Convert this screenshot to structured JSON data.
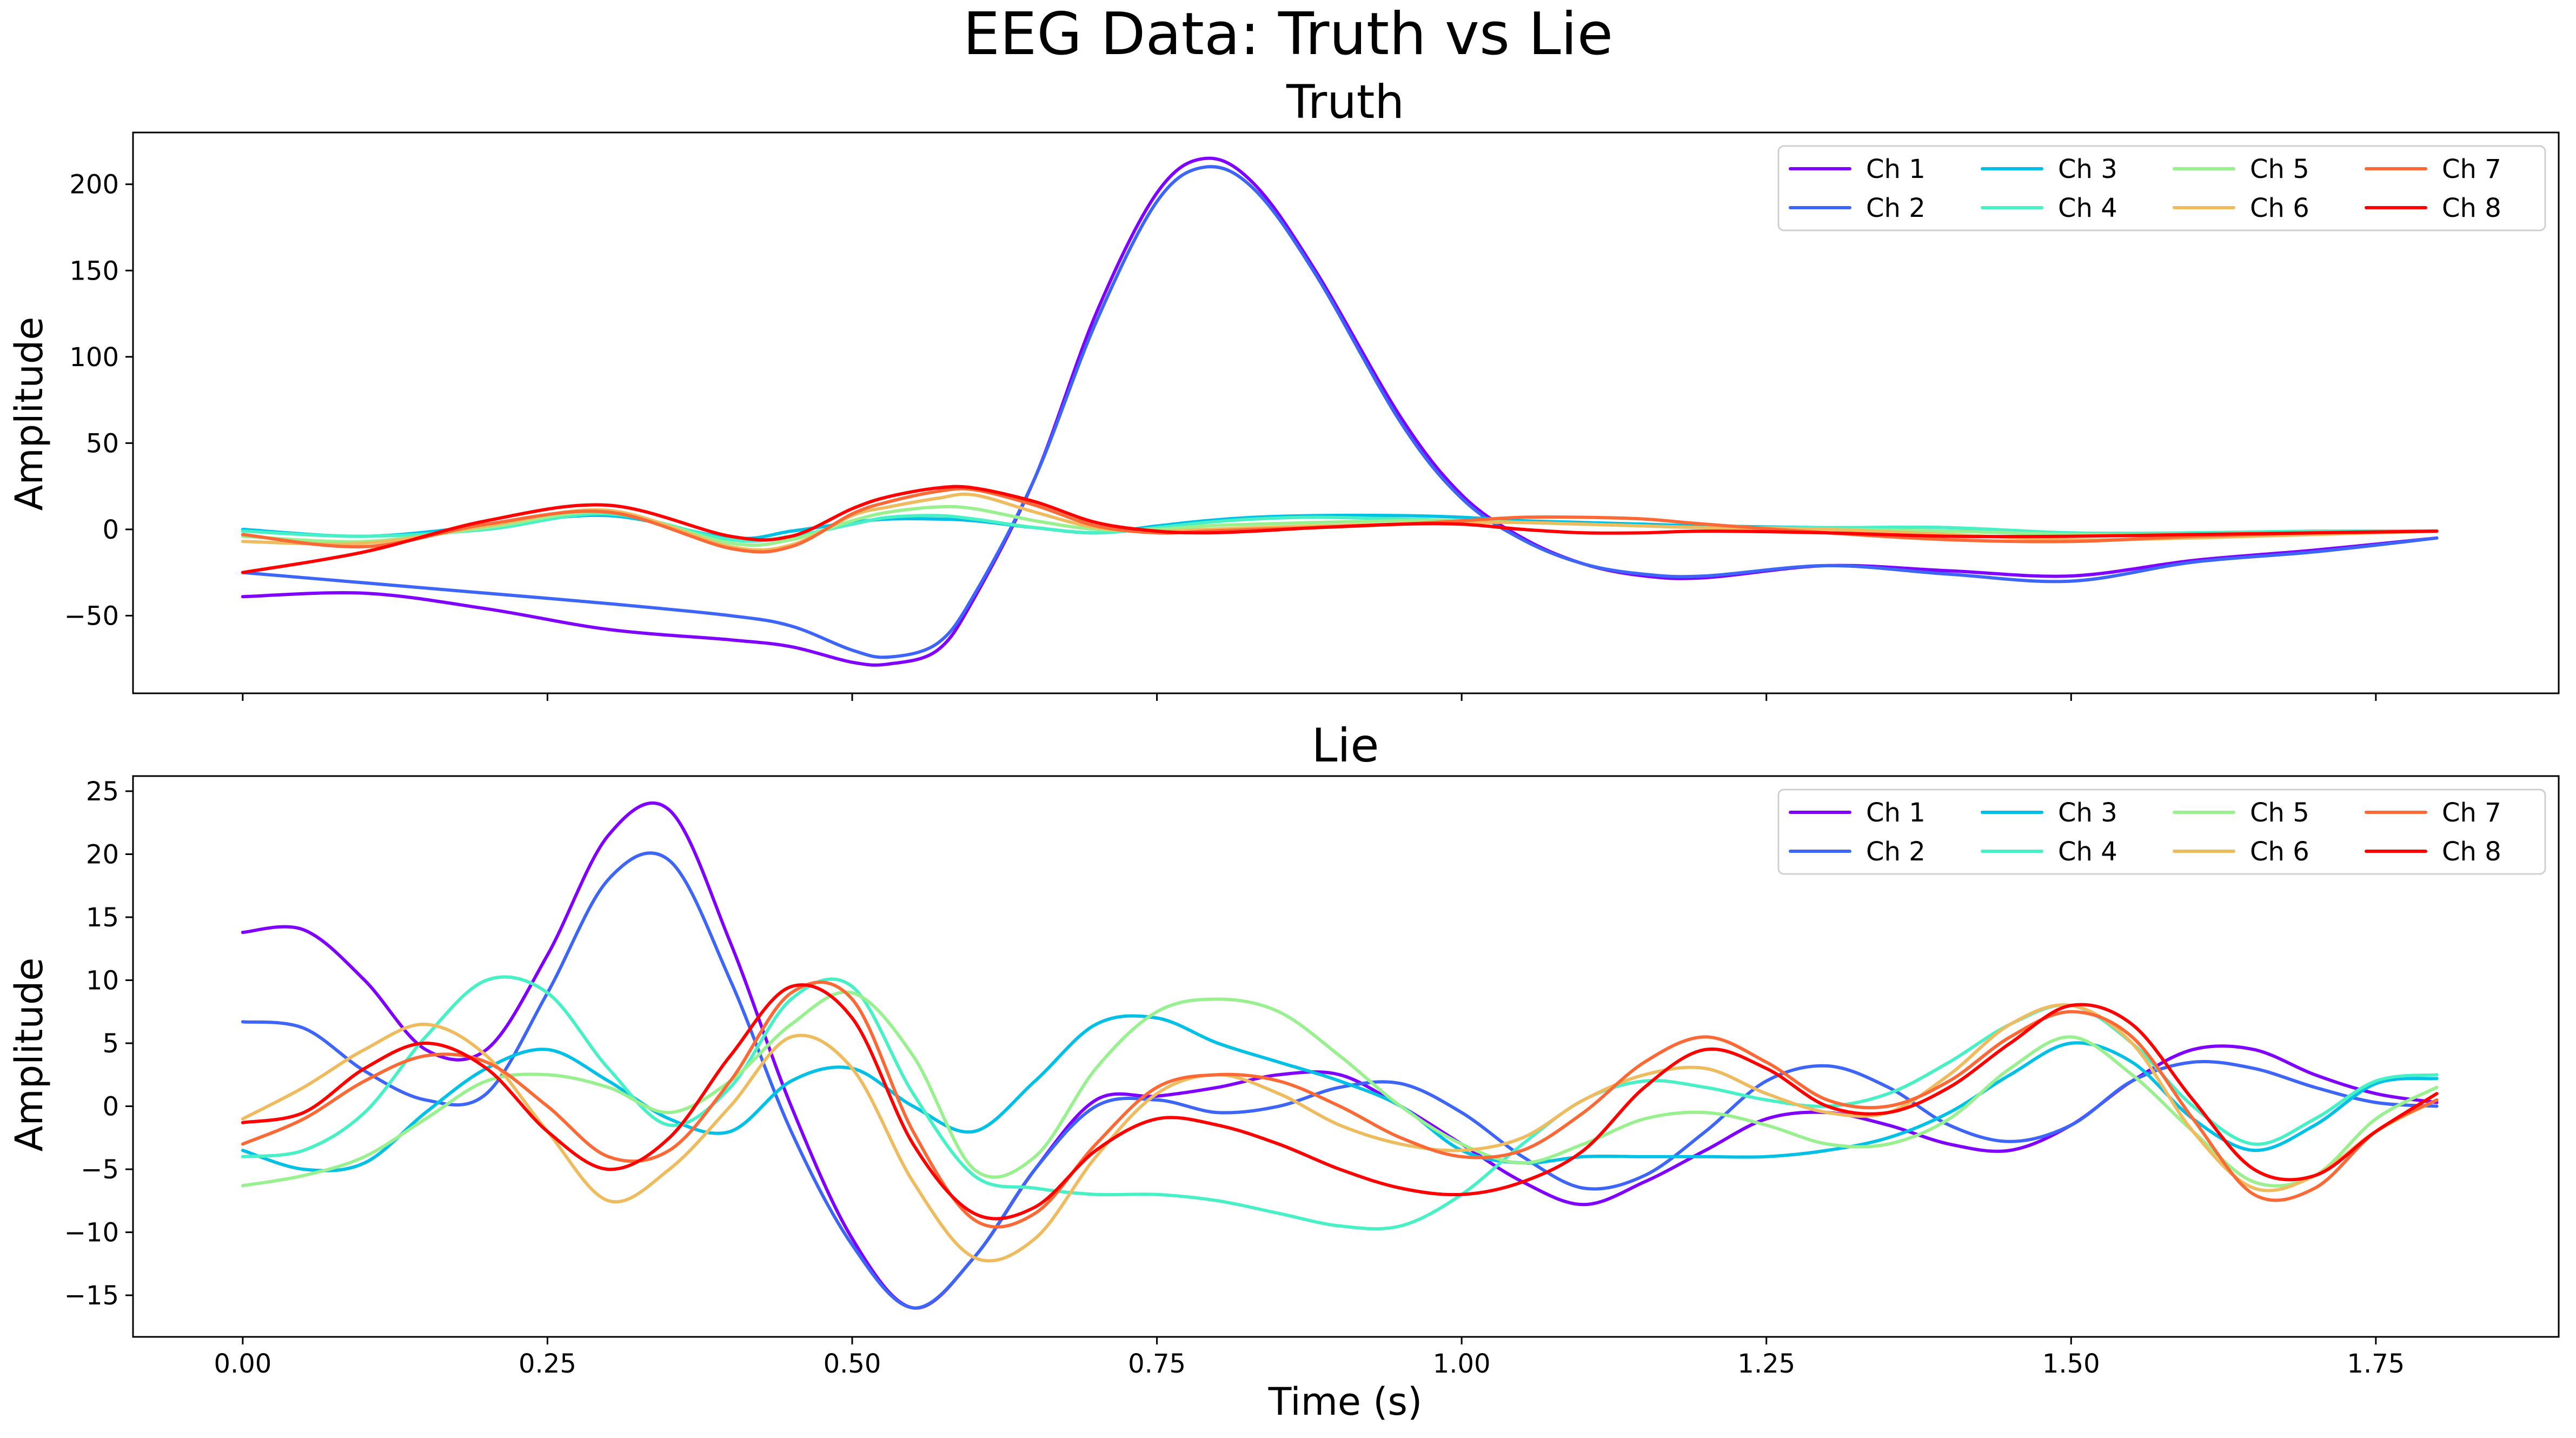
{
  "figure": {
    "title": "EEG Data: Truth vs Lie"
  },
  "colors": [
    "#8000ff",
    "#3d65f7",
    "#00c0e6",
    "#48f0c6",
    "#98f08e",
    "#eebc5f",
    "#fb6936",
    "#ff0000"
  ],
  "chart_data": [
    {
      "type": "line",
      "title": "Truth",
      "xlabel": "",
      "ylabel": "Amplitude",
      "xlim": [
        -0.09,
        1.9
      ],
      "ylim": [
        -95,
        230
      ],
      "xticks": [
        0.0,
        0.25,
        0.5,
        0.75,
        1.0,
        1.25,
        1.5,
        1.75
      ],
      "xtick_labels": [],
      "yticks": [
        -50,
        0,
        50,
        100,
        150,
        200
      ],
      "ytick_labels": [
        "−50",
        "0",
        "50",
        "100",
        "150",
        "200"
      ],
      "legend": {
        "placement": "upper right",
        "columns": 4
      },
      "grid": false,
      "x": [
        0.0,
        0.1,
        0.2,
        0.3,
        0.4,
        0.45,
        0.5,
        0.53,
        0.57,
        0.6,
        0.65,
        0.7,
        0.75,
        0.79,
        0.83,
        0.88,
        0.95,
        1.0,
        1.05,
        1.1,
        1.15,
        1.2,
        1.3,
        1.4,
        1.5,
        1.6,
        1.7,
        1.8
      ],
      "series": [
        {
          "name": "Ch 1",
          "values": [
            -39,
            -37,
            -46,
            -58,
            -64,
            -68,
            -77,
            -78,
            -70,
            -40,
            30,
            125,
            195,
            215,
            200,
            150,
            65,
            20,
            -5,
            -20,
            -27,
            -28,
            -21,
            -24,
            -27,
            -18,
            -12,
            -5
          ]
        },
        {
          "name": "Ch 2",
          "values": [
            -25,
            -31,
            -37,
            -43,
            -50,
            -56,
            -70,
            -74,
            -66,
            -38,
            30,
            120,
            190,
            210,
            197,
            148,
            62,
            18,
            -6,
            -20,
            -26,
            -27,
            -21,
            -26,
            -30,
            -19,
            -13,
            -5
          ]
        },
        {
          "name": "Ch 3",
          "values": [
            0,
            -4,
            2,
            8,
            -5,
            -1,
            4,
            6,
            6,
            5,
            1,
            -2,
            2,
            5,
            7,
            8,
            8,
            7,
            5,
            4,
            3,
            2,
            1,
            1,
            -3,
            -2,
            -1,
            -1
          ]
        },
        {
          "name": "Ch 4",
          "values": [
            -1,
            -4,
            0,
            9,
            -6,
            -4,
            3,
            7,
            8,
            6,
            1,
            -2,
            1,
            4,
            6,
            7,
            6,
            5,
            4,
            3,
            2,
            1,
            1,
            1,
            -2,
            -2,
            -1,
            -1
          ]
        },
        {
          "name": "Ch 5",
          "values": [
            -4,
            -7,
            1,
            10,
            -8,
            -6,
            5,
            10,
            13,
            12,
            5,
            0,
            0,
            2,
            3,
            4,
            5,
            5,
            4,
            3,
            2,
            1,
            0,
            -1,
            -3,
            -3,
            -2,
            -1
          ]
        },
        {
          "name": "Ch 6",
          "values": [
            -7,
            -8,
            2,
            11,
            -10,
            -9,
            8,
            13,
            18,
            20,
            10,
            1,
            -1,
            0,
            1,
            2,
            3,
            4,
            4,
            3,
            2,
            1,
            0,
            -3,
            -6,
            -5,
            -3,
            -1
          ]
        },
        {
          "name": "Ch 7",
          "values": [
            -3,
            -10,
            3,
            10,
            -11,
            -10,
            9,
            16,
            22,
            23,
            14,
            2,
            -2,
            -1,
            0,
            1,
            3,
            5,
            7,
            7,
            6,
            3,
            -2,
            -6,
            -7,
            -4,
            -2,
            -1
          ]
        },
        {
          "name": "Ch 8",
          "values": [
            -25,
            -13,
            5,
            14,
            -4,
            -4,
            12,
            19,
            24,
            24,
            16,
            4,
            -1,
            -2,
            -1,
            1,
            3,
            3,
            0,
            -2,
            -2,
            -1,
            -2,
            -4,
            -4,
            -3,
            -2,
            -1
          ]
        }
      ]
    },
    {
      "type": "line",
      "title": "Lie",
      "xlabel": "Time (s)",
      "ylabel": "Amplitude",
      "xlim": [
        -0.09,
        1.9
      ],
      "ylim": [
        -18.3,
        26.2
      ],
      "xticks": [
        0.0,
        0.25,
        0.5,
        0.75,
        1.0,
        1.25,
        1.5,
        1.75
      ],
      "xtick_labels": [
        "0.00",
        "0.25",
        "0.50",
        "0.75",
        "1.00",
        "1.25",
        "1.50",
        "1.75"
      ],
      "yticks": [
        -15,
        -10,
        -5,
        0,
        5,
        10,
        15,
        20,
        25
      ],
      "ytick_labels": [
        "−15",
        "−10",
        "−5",
        "0",
        "5",
        "10",
        "15",
        "20",
        "25"
      ],
      "legend": {
        "placement": "upper right",
        "columns": 4
      },
      "grid": false,
      "x": [
        0.0,
        0.05,
        0.1,
        0.15,
        0.2,
        0.25,
        0.3,
        0.35,
        0.4,
        0.45,
        0.5,
        0.55,
        0.6,
        0.65,
        0.7,
        0.75,
        0.8,
        0.85,
        0.9,
        0.95,
        1.0,
        1.05,
        1.1,
        1.15,
        1.2,
        1.25,
        1.3,
        1.35,
        1.4,
        1.45,
        1.5,
        1.55,
        1.6,
        1.65,
        1.7,
        1.75,
        1.8
      ],
      "series": [
        {
          "name": "Ch 1",
          "values": [
            13.8,
            14.0,
            10.0,
            4.5,
            4.5,
            12.0,
            21.5,
            23.5,
            13.0,
            0.0,
            -10.5,
            -16.0,
            -12.0,
            -5.0,
            0.5,
            0.8,
            1.5,
            2.5,
            2.5,
            0.0,
            -3.0,
            -6.0,
            -7.8,
            -6.0,
            -3.5,
            -1.0,
            -0.5,
            -1.5,
            -3.0,
            -3.5,
            -1.5,
            2.0,
            4.5,
            4.5,
            2.5,
            1.0,
            0.3
          ]
        },
        {
          "name": "Ch 2",
          "values": [
            6.7,
            6.2,
            2.8,
            0.5,
            1.0,
            9.0,
            18.0,
            19.5,
            10.0,
            -2.0,
            -11.0,
            -16.0,
            -12.0,
            -5.0,
            0.0,
            0.5,
            -0.5,
            0.0,
            1.5,
            1.8,
            -0.5,
            -4.0,
            -6.5,
            -5.5,
            -2.0,
            2.0,
            3.2,
            1.5,
            -1.5,
            -2.8,
            -1.5,
            2.0,
            3.5,
            3.0,
            1.5,
            0.3,
            0.0
          ]
        },
        {
          "name": "Ch 3",
          "values": [
            -3.5,
            -5.0,
            -4.5,
            -0.5,
            3.0,
            4.5,
            2.0,
            -1.0,
            -2.0,
            2.0,
            3.0,
            0.0,
            -2.0,
            2.0,
            6.5,
            7.0,
            5.0,
            3.5,
            2.0,
            0.0,
            -3.5,
            -4.5,
            -4.0,
            -4.0,
            -4.0,
            -4.0,
            -3.5,
            -2.5,
            -0.5,
            2.5,
            5.0,
            3.5,
            -1.0,
            -3.5,
            -1.5,
            1.8,
            2.2
          ]
        },
        {
          "name": "Ch 4",
          "values": [
            -4.0,
            -3.5,
            -0.5,
            5.5,
            10.0,
            9.0,
            3.0,
            -1.5,
            1.5,
            8.5,
            9.5,
            1.0,
            -5.5,
            -6.5,
            -7.0,
            -7.0,
            -7.5,
            -8.5,
            -9.5,
            -9.5,
            -7.0,
            -3.0,
            0.5,
            2.0,
            1.5,
            0.5,
            0.0,
            1.0,
            3.5,
            6.5,
            8.0,
            5.0,
            0.0,
            -3.0,
            -1.0,
            2.0,
            2.5
          ]
        },
        {
          "name": "Ch 5",
          "values": [
            -6.3,
            -5.5,
            -4.0,
            -1.0,
            2.0,
            2.5,
            1.5,
            -0.5,
            2.0,
            6.5,
            9.0,
            4.0,
            -5.0,
            -4.0,
            3.0,
            7.5,
            8.5,
            7.5,
            4.0,
            0.0,
            -3.0,
            -4.5,
            -3.0,
            -1.0,
            -0.5,
            -1.5,
            -3.0,
            -3.0,
            -1.0,
            3.0,
            5.5,
            2.5,
            -2.0,
            -6.0,
            -5.5,
            -1.0,
            1.5
          ]
        },
        {
          "name": "Ch 6",
          "values": [
            -1.0,
            1.5,
            4.5,
            6.5,
            4.0,
            -2.0,
            -7.5,
            -5.0,
            0.0,
            5.5,
            3.0,
            -6.0,
            -12.0,
            -10.5,
            -4.0,
            1.0,
            2.5,
            1.0,
            -1.5,
            -3.0,
            -3.5,
            -2.5,
            0.5,
            2.5,
            3.0,
            1.0,
            -0.5,
            -0.5,
            2.5,
            6.5,
            8.0,
            5.0,
            -2.0,
            -6.5,
            -5.5,
            -2.0,
            0.5
          ]
        },
        {
          "name": "Ch 7",
          "values": [
            -3.0,
            -1.0,
            2.0,
            4.0,
            3.5,
            0.0,
            -4.0,
            -3.5,
            2.0,
            9.0,
            8.5,
            -2.0,
            -9.0,
            -8.5,
            -3.0,
            1.5,
            2.5,
            2.0,
            0.0,
            -2.5,
            -4.0,
            -3.5,
            -0.5,
            3.5,
            5.5,
            3.5,
            0.5,
            0.0,
            2.0,
            5.5,
            7.5,
            5.5,
            -1.0,
            -7.0,
            -6.5,
            -2.0,
            0.5
          ]
        },
        {
          "name": "Ch 8",
          "values": [
            -1.3,
            -0.5,
            3.0,
            5.0,
            3.0,
            -2.0,
            -5.0,
            -2.5,
            4.0,
            9.5,
            7.0,
            -3.0,
            -8.5,
            -8.0,
            -3.5,
            -1.0,
            -1.5,
            -3.0,
            -5.0,
            -6.5,
            -7.0,
            -6.0,
            -3.5,
            1.5,
            4.5,
            3.0,
            0.0,
            -0.5,
            1.5,
            5.0,
            8.0,
            6.5,
            0.5,
            -5.0,
            -5.5,
            -2.0,
            1.0
          ]
        }
      ]
    }
  ]
}
